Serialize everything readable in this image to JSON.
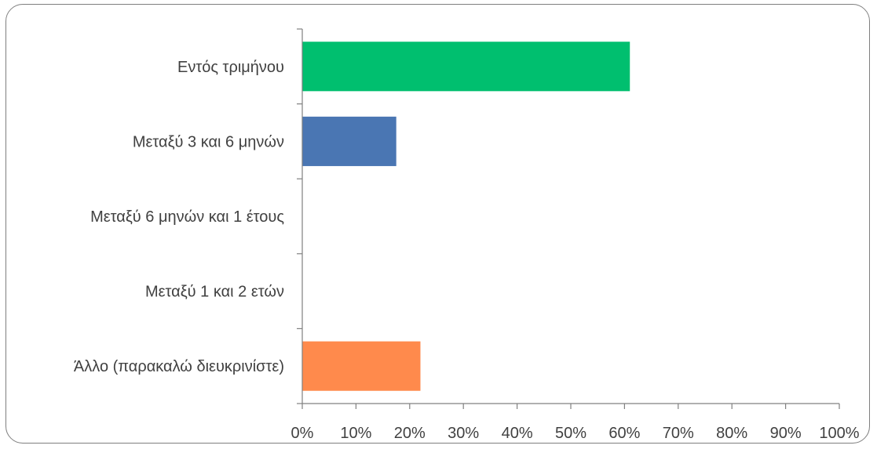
{
  "chart_data": {
    "type": "bar",
    "orientation": "horizontal",
    "categories": [
      "Εντός τριμήνου",
      "Μεταξύ 3 και 6 μηνών",
      "Μεταξύ 6 μηνών και 1 έτους",
      "Μεταξύ 1 και 2 ετών",
      "Άλλο (παρακαλώ διευκρινίστε)"
    ],
    "values": [
      61,
      17.5,
      0,
      0,
      22
    ],
    "colors": [
      "#00bf6f",
      "#4a76b3",
      "#7aa6d9",
      "#a5a5a5",
      "#ff8a4c"
    ],
    "xlim": [
      0,
      100
    ],
    "xticks": [
      "0%",
      "10%",
      "20%",
      "30%",
      "40%",
      "50%",
      "60%",
      "70%",
      "80%",
      "90%",
      "100%"
    ],
    "grid": false,
    "title": "",
    "xlabel": "",
    "ylabel": ""
  }
}
